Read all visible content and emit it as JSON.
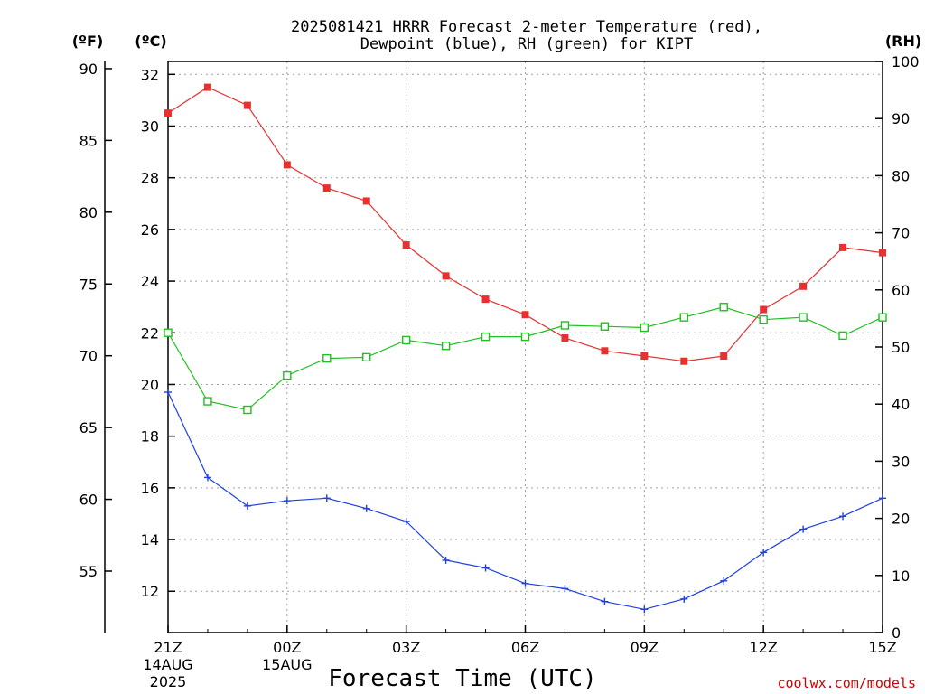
{
  "chart_data": {
    "type": "line",
    "title_line1": "2025081421 HRRR Forecast 2-meter Temperature (red),",
    "title_line2": "Dewpoint (blue), RH (green) for KIPT",
    "xlabel": "Forecast Time (UTC)",
    "credit": "coolwx.com/models",
    "unit_f": "(ºF)",
    "unit_c": "(ºC)",
    "unit_rh": "(RH)",
    "c_ticks": [
      "12",
      "14",
      "16",
      "18",
      "20",
      "22",
      "24",
      "26",
      "28",
      "30",
      "32"
    ],
    "f_ticks": [
      "55",
      "60",
      "65",
      "70",
      "75",
      "80",
      "85",
      "90"
    ],
    "rh_ticks": [
      "0",
      "10",
      "20",
      "30",
      "40",
      "50",
      "60",
      "70",
      "80",
      "90",
      "100"
    ],
    "x_ticks": [
      {
        "hour": 0,
        "line1": "21Z",
        "line2": "14AUG",
        "line3": "2025"
      },
      {
        "hour": 3,
        "line1": "00Z",
        "line2": "15AUG",
        "line3": ""
      },
      {
        "hour": 6,
        "line1": "03Z",
        "line2": "",
        "line3": ""
      },
      {
        "hour": 9,
        "line1": "06Z",
        "line2": "",
        "line3": ""
      },
      {
        "hour": 12,
        "line1": "09Z",
        "line2": "",
        "line3": ""
      },
      {
        "hour": 15,
        "line1": "12Z",
        "line2": "",
        "line3": ""
      },
      {
        "hour": 18,
        "line1": "15Z",
        "line2": "",
        "line3": ""
      }
    ],
    "c_range": [
      10.4,
      32.5
    ],
    "rh_range": [
      0,
      100
    ],
    "x_range": [
      0,
      18
    ],
    "series": [
      {
        "key": "temperature",
        "color": "#e83030",
        "marker": "filled-square",
        "axis": "c",
        "values": [
          30.5,
          31.5,
          30.8,
          28.5,
          27.6,
          27.1,
          25.4,
          24.2,
          23.3,
          22.7,
          21.8,
          21.3,
          21.1,
          20.9,
          21.1,
          22.9,
          23.8,
          25.3,
          25.1
        ]
      },
      {
        "key": "dewpoint",
        "color": "#2040e0",
        "marker": "plus",
        "axis": "c",
        "values": [
          19.7,
          16.4,
          15.3,
          15.5,
          15.6,
          15.2,
          14.7,
          13.2,
          12.9,
          12.3,
          12.1,
          11.6,
          11.3,
          11.7,
          12.4,
          13.5,
          14.4,
          14.9,
          15.6
        ]
      },
      {
        "key": "rh",
        "color": "#20c020",
        "marker": "open-square",
        "axis": "rh",
        "values": [
          52.5,
          40.5,
          39.0,
          45.0,
          48.0,
          48.2,
          51.2,
          50.2,
          51.8,
          51.8,
          53.8,
          53.6,
          53.4,
          55.2,
          57.0,
          54.8,
          55.2,
          52.0,
          55.2
        ]
      }
    ]
  }
}
